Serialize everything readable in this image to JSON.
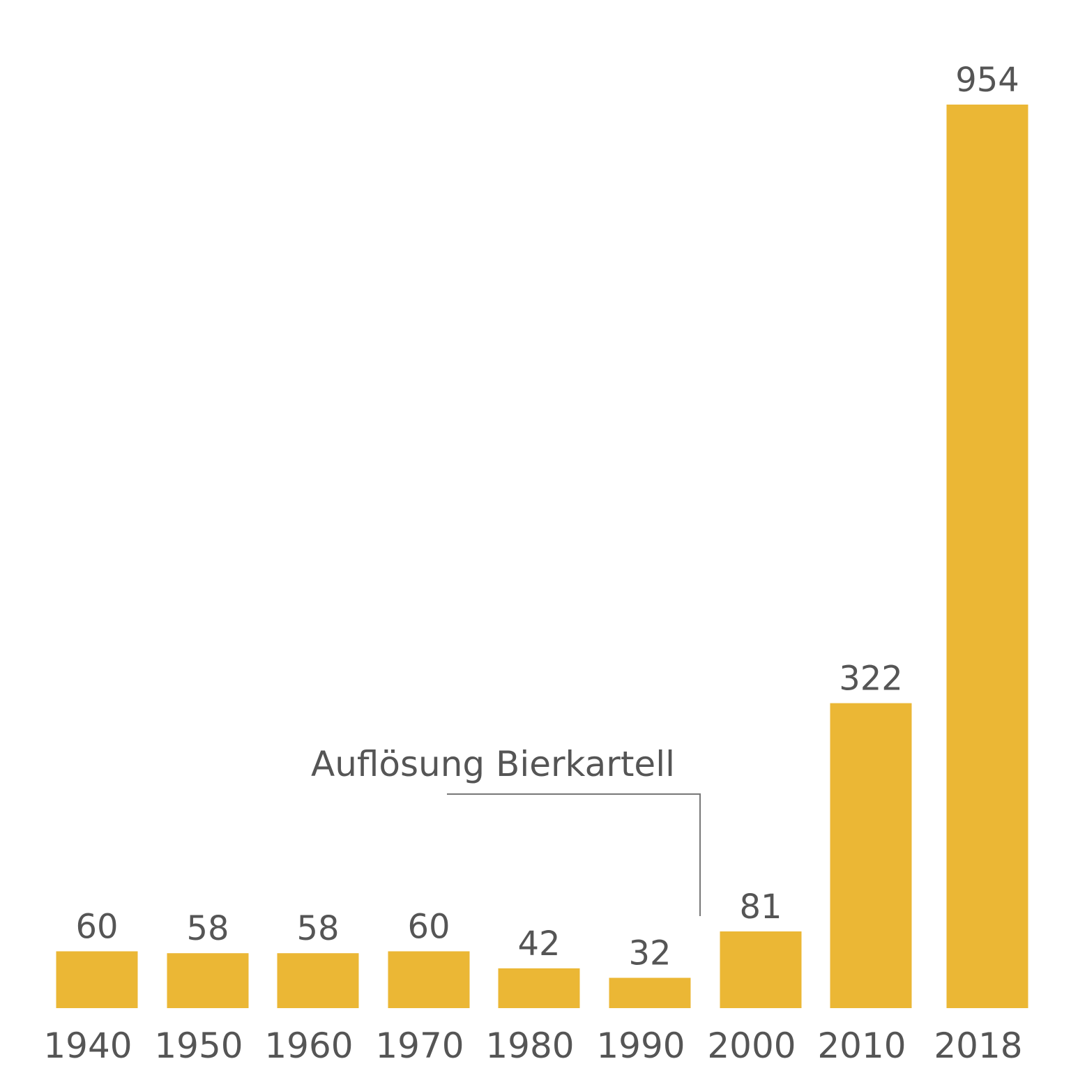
{
  "chart_data": {
    "type": "bar",
    "categories": [
      "1940",
      "1950",
      "1960",
      "1970",
      "1980",
      "1990",
      "2000",
      "2010",
      "2018"
    ],
    "values": [
      60,
      58,
      58,
      60,
      42,
      32,
      81,
      322,
      954
    ],
    "data_labels": [
      "60",
      "58",
      "58",
      "60",
      "42",
      "32",
      "81",
      "322",
      "954"
    ],
    "title": "",
    "xlabel": "",
    "ylabel": "",
    "ylim": [
      0,
      954
    ],
    "grid": false,
    "bar_color": "#EBB735",
    "text_color": "#555555",
    "annotation": {
      "text": "Auflösung Bierkartell",
      "between": [
        "1990",
        "2000"
      ]
    }
  }
}
